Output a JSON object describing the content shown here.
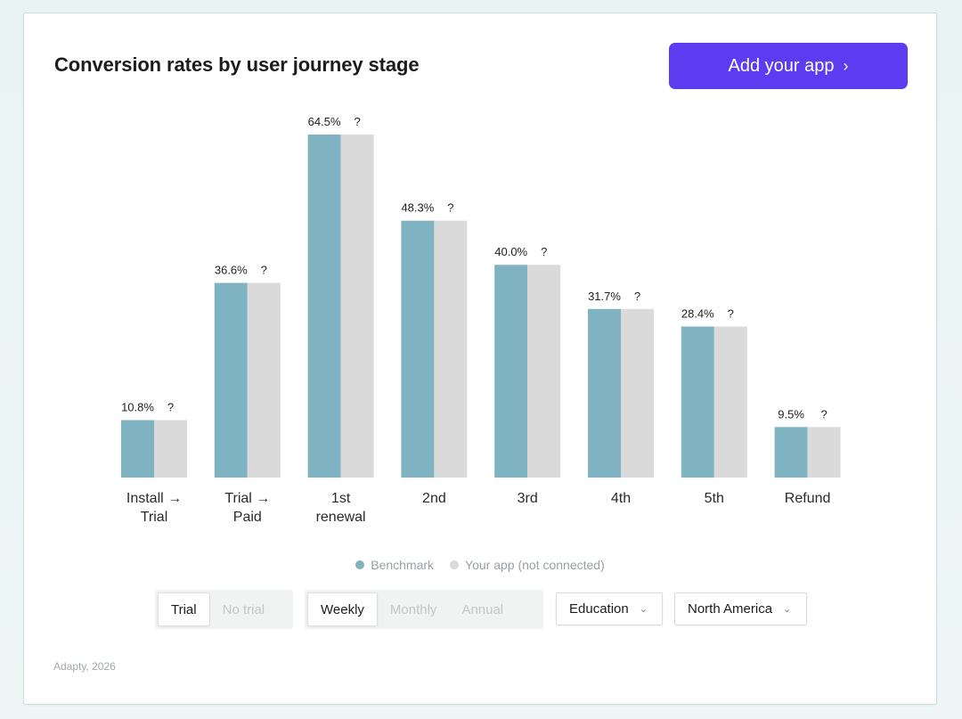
{
  "title": "Conversion rates by user journey stage",
  "cta": {
    "label": "Add your app",
    "icon": "chevron-right-icon"
  },
  "colors": {
    "benchmark": "#7fb3c2",
    "your_app": "#dadada",
    "accent": "#5b3cf0"
  },
  "chart_data": {
    "type": "bar",
    "title": "Conversion rates by user journey stage",
    "categories": [
      "Install → Trial",
      "Trial → Paid",
      "1st renewal",
      "2nd",
      "3rd",
      "4th",
      "5th",
      "Refund"
    ],
    "category_lines": [
      [
        "Install →",
        "Trial"
      ],
      [
        "Trial →",
        "Paid"
      ],
      [
        "1st",
        "renewal"
      ],
      [
        "2nd"
      ],
      [
        "3rd"
      ],
      [
        "4th"
      ],
      [
        "5th"
      ],
      [
        "Refund"
      ]
    ],
    "series": [
      {
        "name": "Benchmark",
        "values": [
          10.8,
          36.6,
          64.5,
          48.3,
          40.0,
          31.7,
          28.4,
          9.5
        ],
        "labels": [
          "10.8%",
          "36.6%",
          "64.5%",
          "48.3%",
          "40.0%",
          "31.7%",
          "28.4%",
          "9.5%"
        ]
      },
      {
        "name": "Your app (not connected)",
        "values": [
          10.8,
          36.6,
          64.5,
          48.3,
          40.0,
          31.7,
          28.4,
          9.5
        ],
        "labels": [
          "?",
          "?",
          "?",
          "?",
          "?",
          "?",
          "?",
          "?"
        ]
      }
    ],
    "unit": "%",
    "ylim": [
      0,
      64.5
    ],
    "xlabel": "",
    "ylabel": "",
    "grid": false,
    "legend_position": "bottom-center"
  },
  "legend": [
    {
      "label": "Benchmark"
    },
    {
      "label": "Your app (not connected)"
    }
  ],
  "filters": {
    "trial": {
      "options": [
        "Trial",
        "No trial"
      ],
      "selected": "Trial"
    },
    "period": {
      "options": [
        "Weekly",
        "Monthly",
        "Annual"
      ],
      "selected": "Weekly"
    },
    "category": {
      "value": "Education"
    },
    "region": {
      "value": "North America"
    }
  },
  "footer": "Adapty, 2026"
}
